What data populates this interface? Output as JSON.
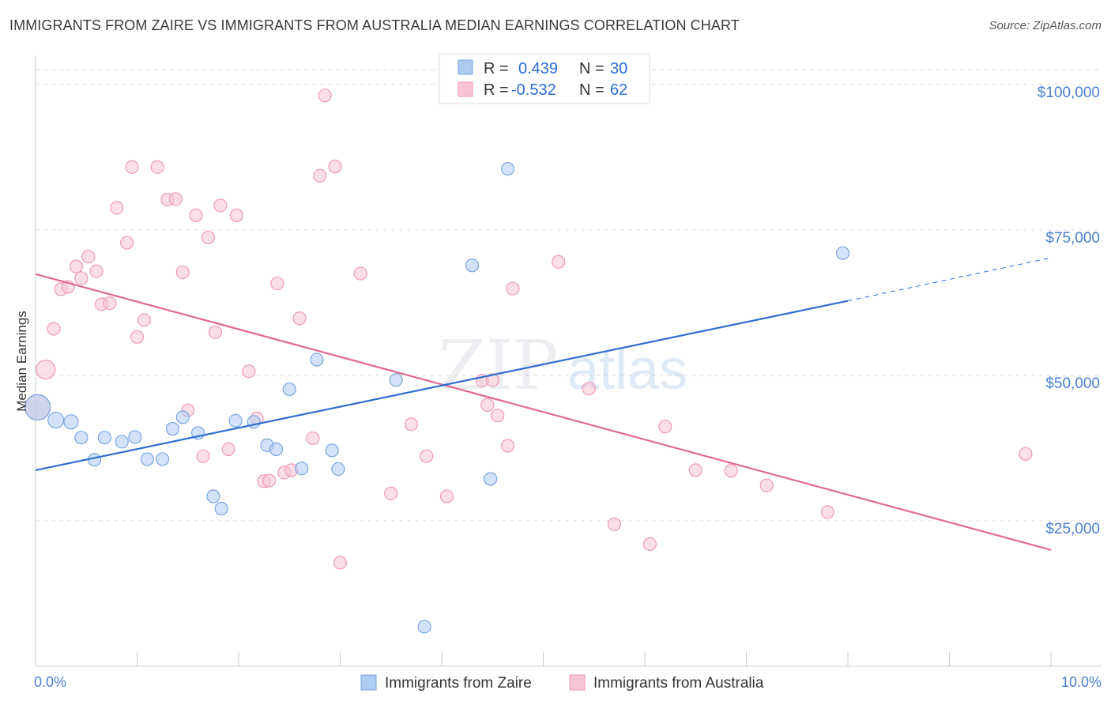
{
  "title": "IMMIGRANTS FROM ZAIRE VS IMMIGRANTS FROM AUSTRALIA MEDIAN EARNINGS CORRELATION CHART",
  "source": "Source: ZipAtlas.com",
  "watermark": {
    "zip": "ZIP",
    "atlas": "atlas"
  },
  "colors": {
    "zaire_fill": "#aecbf2",
    "zaire_stroke": "#7aa6e0",
    "zaire_line": "#2f6fd0",
    "aus_fill": "#f7c4d3",
    "aus_stroke": "#ee9ab4",
    "aus_line": "#e06a93",
    "grid": "#dddddd",
    "axis_text": "#4a7fd0"
  },
  "legend": {
    "zaire": {
      "r_label": "R =",
      "r_value": "0.439",
      "n_label": "N =",
      "n_value": "30"
    },
    "australia": {
      "r_label": "R =",
      "r_value": "-0.532",
      "n_label": "N =",
      "n_value": "62"
    }
  },
  "chart_data": {
    "type": "scatter",
    "title": "IMMIGRANTS FROM ZAIRE VS IMMIGRANTS FROM AUSTRALIA MEDIAN EARNINGS CORRELATION CHART",
    "xlabel": "",
    "ylabel": "Median Earnings",
    "xlim": [
      0,
      10
    ],
    "ylim": [
      0,
      105000
    ],
    "x_tick_labels": [
      "0.0%",
      "10.0%"
    ],
    "y_ticks": [
      25000,
      50000,
      75000,
      100000
    ],
    "y_tick_labels": [
      "$25,000",
      "$50,000",
      "$75,000",
      "$100,000"
    ],
    "grid": true,
    "legend_position": "top-center",
    "series": [
      {
        "name": "Immigrants from Zaire",
        "points": [
          [
            0.02,
            44500,
            16
          ],
          [
            0.2,
            42300,
            10
          ],
          [
            0.35,
            42000,
            9
          ],
          [
            0.45,
            39300,
            8
          ],
          [
            0.58,
            35500,
            8
          ],
          [
            0.68,
            39300,
            8
          ],
          [
            0.85,
            38600,
            8
          ],
          [
            0.98,
            39400,
            8
          ],
          [
            1.1,
            35600,
            8
          ],
          [
            1.25,
            35600,
            8
          ],
          [
            1.35,
            40800,
            8
          ],
          [
            1.45,
            42800,
            8
          ],
          [
            1.6,
            40100,
            8
          ],
          [
            1.75,
            29200,
            8
          ],
          [
            1.83,
            27100,
            8
          ],
          [
            1.97,
            42200,
            8
          ],
          [
            2.15,
            42000,
            8
          ],
          [
            2.28,
            38000,
            8
          ],
          [
            2.37,
            37300,
            8
          ],
          [
            2.5,
            47600,
            8
          ],
          [
            2.62,
            34000,
            8
          ],
          [
            2.77,
            52700,
            8
          ],
          [
            2.92,
            37100,
            8
          ],
          [
            2.98,
            33900,
            8
          ],
          [
            3.55,
            49200,
            8
          ],
          [
            3.83,
            6800,
            8
          ],
          [
            4.3,
            68900,
            8
          ],
          [
            4.48,
            32200,
            8
          ],
          [
            4.65,
            85500,
            8
          ],
          [
            7.95,
            71000,
            8
          ]
        ],
        "trend": {
          "x": [
            0,
            8.0
          ],
          "y": [
            33700,
            62800
          ]
        },
        "trend_extension": {
          "x": [
            8.0,
            10.0
          ],
          "y": [
            62800,
            70200
          ]
        }
      },
      {
        "name": "Immigrants from Australia",
        "points": [
          [
            0.02,
            44500,
            16
          ],
          [
            0.1,
            51000,
            12
          ],
          [
            0.18,
            58000,
            8
          ],
          [
            0.25,
            64800,
            8
          ],
          [
            0.32,
            65200,
            8
          ],
          [
            0.4,
            68700,
            8
          ],
          [
            0.45,
            66700,
            8
          ],
          [
            0.52,
            70400,
            8
          ],
          [
            0.6,
            67900,
            8
          ],
          [
            0.65,
            62200,
            8
          ],
          [
            0.73,
            62400,
            8
          ],
          [
            0.8,
            78800,
            8
          ],
          [
            0.9,
            72800,
            8
          ],
          [
            0.95,
            85800,
            8
          ],
          [
            1.0,
            56600,
            8
          ],
          [
            1.07,
            59500,
            8
          ],
          [
            1.2,
            85800,
            8
          ],
          [
            1.3,
            80200,
            8
          ],
          [
            1.38,
            80300,
            8
          ],
          [
            1.45,
            67700,
            8
          ],
          [
            1.5,
            44000,
            8
          ],
          [
            1.58,
            77500,
            8
          ],
          [
            1.65,
            36100,
            8
          ],
          [
            1.7,
            73700,
            8
          ],
          [
            1.77,
            57400,
            8
          ],
          [
            1.82,
            79200,
            8
          ],
          [
            1.9,
            37300,
            8
          ],
          [
            1.98,
            77500,
            8
          ],
          [
            2.1,
            50700,
            8
          ],
          [
            2.18,
            42600,
            8
          ],
          [
            2.25,
            31800,
            8
          ],
          [
            2.3,
            31900,
            8
          ],
          [
            2.38,
            65800,
            8
          ],
          [
            2.45,
            33300,
            8
          ],
          [
            2.52,
            33700,
            8
          ],
          [
            2.6,
            59800,
            8
          ],
          [
            2.73,
            39200,
            8
          ],
          [
            2.8,
            84300,
            8
          ],
          [
            2.85,
            98100,
            8
          ],
          [
            2.95,
            85900,
            8
          ],
          [
            3.0,
            17800,
            8
          ],
          [
            3.2,
            67500,
            8
          ],
          [
            3.5,
            29700,
            8
          ],
          [
            3.7,
            41600,
            8
          ],
          [
            3.85,
            36100,
            8
          ],
          [
            4.05,
            29200,
            8
          ],
          [
            4.4,
            49100,
            8
          ],
          [
            4.45,
            44900,
            8
          ],
          [
            4.5,
            49200,
            8
          ],
          [
            4.55,
            43100,
            8
          ],
          [
            4.65,
            37900,
            8
          ],
          [
            4.7,
            64900,
            8
          ],
          [
            5.15,
            69500,
            8
          ],
          [
            5.45,
            47700,
            8
          ],
          [
            5.7,
            24400,
            8
          ],
          [
            6.05,
            21000,
            8
          ],
          [
            6.2,
            41200,
            8
          ],
          [
            6.5,
            33700,
            8
          ],
          [
            6.85,
            33600,
            8
          ],
          [
            7.2,
            31100,
            8
          ],
          [
            7.8,
            26500,
            8
          ],
          [
            9.75,
            36500,
            8
          ]
        ],
        "trend": {
          "x": [
            0,
            10.0
          ],
          "y": [
            67400,
            20000
          ]
        }
      }
    ]
  }
}
